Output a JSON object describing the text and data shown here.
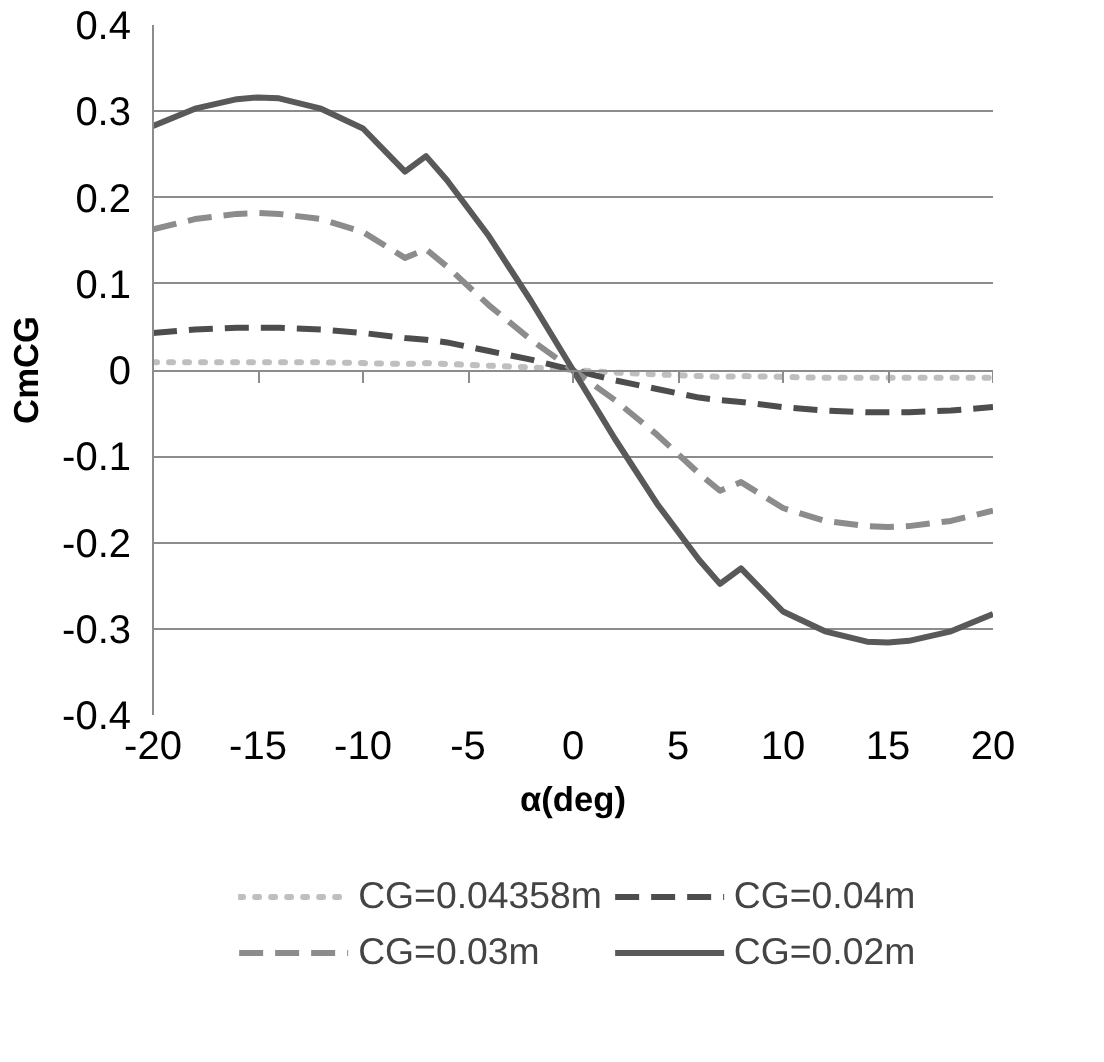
{
  "chart_data": {
    "type": "line",
    "xlabel": "α(deg)",
    "ylabel": "CmCG",
    "x": [
      -20,
      -18,
      -16,
      -15,
      -14,
      -12,
      -10,
      -8,
      -7,
      -6,
      -4,
      -2,
      0,
      2,
      4,
      6,
      7,
      8,
      10,
      12,
      14,
      15,
      16,
      18,
      20
    ],
    "series": [
      {
        "name": "CG=0.04358m",
        "color": "#bfbfbf",
        "line_style": "dotted",
        "values": [
          0.009,
          0.009,
          0.009,
          0.009,
          0.009,
          0.009,
          0.008,
          0.007,
          0.008,
          0.007,
          0.005,
          0.003,
          0,
          -0.003,
          -0.005,
          -0.007,
          -0.008,
          -0.007,
          -0.008,
          -0.009,
          -0.009,
          -0.009,
          -0.009,
          -0.009,
          -0.009
        ]
      },
      {
        "name": "CG=0.04m",
        "color": "#4d4d4d",
        "line_style": "dashed",
        "values": [
          0.043,
          0.047,
          0.049,
          0.049,
          0.049,
          0.047,
          0.043,
          0.037,
          0.035,
          0.032,
          0.022,
          0.012,
          0,
          -0.012,
          -0.022,
          -0.032,
          -0.035,
          -0.037,
          -0.043,
          -0.047,
          -0.049,
          -0.049,
          -0.049,
          -0.047,
          -0.043
        ]
      },
      {
        "name": "CG=0.03m",
        "color": "#8c8c8c",
        "line_style": "dashed",
        "values": [
          0.163,
          0.175,
          0.181,
          0.182,
          0.181,
          0.175,
          0.16,
          0.13,
          0.14,
          0.12,
          0.075,
          0.035,
          0,
          -0.035,
          -0.075,
          -0.12,
          -0.14,
          -0.13,
          -0.16,
          -0.175,
          -0.181,
          -0.182,
          -0.181,
          -0.175,
          -0.163
        ]
      },
      {
        "name": "CG=0.02m",
        "color": "#595959",
        "line_style": "solid",
        "values": [
          0.283,
          0.303,
          0.314,
          0.316,
          0.315,
          0.303,
          0.28,
          0.23,
          0.248,
          0.22,
          0.155,
          0.08,
          0,
          -0.08,
          -0.155,
          -0.22,
          -0.248,
          -0.23,
          -0.28,
          -0.303,
          -0.315,
          -0.316,
          -0.314,
          -0.303,
          -0.283
        ]
      }
    ],
    "xlim": [
      -20,
      20
    ],
    "xticks": [
      -20,
      -15,
      -10,
      -5,
      0,
      5,
      10,
      15,
      20
    ],
    "ylim": [
      -0.4,
      0.4
    ],
    "yticks": [
      -0.4,
      -0.3,
      -0.2,
      -0.1,
      0,
      0.1,
      0.2,
      0.3,
      0.4
    ],
    "grid": "y",
    "legend": "bottom"
  }
}
